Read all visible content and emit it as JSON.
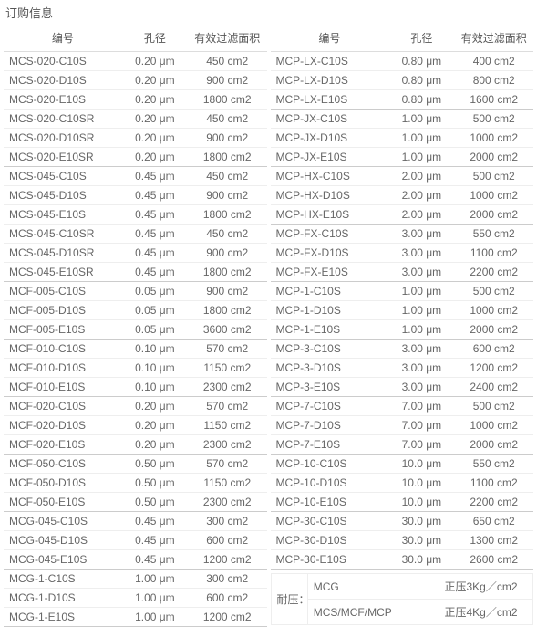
{
  "page": {
    "title": "订购信息"
  },
  "headers": {
    "code": "编号",
    "pore": "孔径",
    "area": "有效过滤面积",
    "area_short": "有效过滤面积"
  },
  "left_groups": [
    [
      {
        "code": "MCS-020-C10S",
        "pore": "0.20 μm",
        "area": "450 cm2"
      },
      {
        "code": "MCS-020-D10S",
        "pore": "0.20 μm",
        "area": "900 cm2"
      },
      {
        "code": "MCS-020-E10S",
        "pore": "0.20 μm",
        "area": "1800 cm2"
      },
      {
        "code": "MCS-020-C10SR",
        "pore": "0.20 μm",
        "area": "450 cm2"
      },
      {
        "code": "MCS-020-D10SR",
        "pore": "0.20 μm",
        "area": "900 cm2"
      },
      {
        "code": "MCS-020-E10SR",
        "pore": "0.20 μm",
        "area": "1800 cm2"
      }
    ],
    [
      {
        "code": "MCS-045-C10S",
        "pore": "0.45 μm",
        "area": "450 cm2"
      },
      {
        "code": "MCS-045-D10S",
        "pore": "0.45 μm",
        "area": "900 cm2"
      },
      {
        "code": "MCS-045-E10S",
        "pore": "0.45 μm",
        "area": "1800 cm2"
      },
      {
        "code": "MCS-045-C10SR",
        "pore": "0.45 μm",
        "area": "450 cm2"
      },
      {
        "code": "MCS-045-D10SR",
        "pore": "0.45 μm",
        "area": "900 cm2"
      },
      {
        "code": "MCS-045-E10SR",
        "pore": "0.45 μm",
        "area": "1800 cm2"
      }
    ],
    [
      {
        "code": "MCF-005-C10S",
        "pore": "0.05 μm",
        "area": "900 cm2"
      },
      {
        "code": "MCF-005-D10S",
        "pore": "0.05 μm",
        "area": "1800 cm2"
      },
      {
        "code": "MCF-005-E10S",
        "pore": "0.05 μm",
        "area": "3600 cm2"
      }
    ],
    [
      {
        "code": "MCF-010-C10S",
        "pore": "0.10 μm",
        "area": "570 cm2"
      },
      {
        "code": "MCF-010-D10S",
        "pore": "0.10 μm",
        "area": "1150 cm2"
      },
      {
        "code": "MCF-010-E10S",
        "pore": "0.10 μm",
        "area": "2300 cm2"
      }
    ],
    [
      {
        "code": "MCF-020-C10S",
        "pore": "0.20 μm",
        "area": "570 cm2"
      },
      {
        "code": "MCF-020-D10S",
        "pore": "0.20 μm",
        "area": "1150 cm2"
      },
      {
        "code": "MCF-020-E10S",
        "pore": "0.20 μm",
        "area": "2300 cm2"
      }
    ],
    [
      {
        "code": "MCF-050-C10S",
        "pore": "0.50 μm",
        "area": "570 cm2"
      },
      {
        "code": "MCF-050-D10S",
        "pore": "0.50 μm",
        "area": "1150 cm2"
      },
      {
        "code": "MCF-050-E10S",
        "pore": "0.50 μm",
        "area": "2300 cm2"
      }
    ],
    [
      {
        "code": "MCG-045-C10S",
        "pore": "0.45 μm",
        "area": "300 cm2"
      },
      {
        "code": "MCG-045-D10S",
        "pore": "0.45 μm",
        "area": "600 cm2"
      },
      {
        "code": "MCG-045-E10S",
        "pore": "0.45 μm",
        "area": "1200 cm2"
      }
    ],
    [
      {
        "code": "MCG-1-C10S",
        "pore": "1.00 μm",
        "area": "300 cm2"
      },
      {
        "code": "MCG-1-D10S",
        "pore": "1.00 μm",
        "area": "600 cm2"
      },
      {
        "code": "MCG-1-E10S",
        "pore": "1.00 μm",
        "area": "1200 cm2"
      }
    ]
  ],
  "right_groups": [
    [
      {
        "code": "MCP-LX-C10S",
        "pore": "0.80 μm",
        "area": "400 cm2"
      },
      {
        "code": "MCP-LX-D10S",
        "pore": "0.80 μm",
        "area": "800 cm2"
      },
      {
        "code": "MCP-LX-E10S",
        "pore": "0.80 μm",
        "area": "1600 cm2"
      }
    ],
    [
      {
        "code": "MCP-JX-C10S",
        "pore": "1.00 μm",
        "area": "500 cm2"
      },
      {
        "code": "MCP-JX-D10S",
        "pore": "1.00 μm",
        "area": "1000 cm2"
      },
      {
        "code": "MCP-JX-E10S",
        "pore": "1.00 μm",
        "area": "2000 cm2"
      }
    ],
    [
      {
        "code": "MCP-HX-C10S",
        "pore": "2.00 μm",
        "area": "500 cm2"
      },
      {
        "code": "MCP-HX-D10S",
        "pore": "2.00 μm",
        "area": "1000 cm2"
      },
      {
        "code": "MCP-HX-E10S",
        "pore": "2.00 μm",
        "area": "2000 cm2"
      }
    ],
    [
      {
        "code": "MCP-FX-C10S",
        "pore": "3.00 μm",
        "area": "550 cm2"
      },
      {
        "code": "MCP-FX-D10S",
        "pore": "3.00 μm",
        "area": "1100 cm2"
      },
      {
        "code": "MCP-FX-E10S",
        "pore": "3.00 μm",
        "area": "2200 cm2"
      }
    ],
    [
      {
        "code": "MCP-1-C10S",
        "pore": "1.00 μm",
        "area": "500 cm2"
      },
      {
        "code": "MCP-1-D10S",
        "pore": "1.00 μm",
        "area": "1000 cm2"
      },
      {
        "code": "MCP-1-E10S",
        "pore": "1.00 μm",
        "area": "2000 cm2"
      }
    ],
    [
      {
        "code": "MCP-3-C10S",
        "pore": "3.00 μm",
        "area": "600 cm2"
      },
      {
        "code": "MCP-3-D10S",
        "pore": "3.00 μm",
        "area": "1200 cm2"
      },
      {
        "code": "MCP-3-E10S",
        "pore": "3.00 μm",
        "area": "2400 cm2"
      }
    ],
    [
      {
        "code": "MCP-7-C10S",
        "pore": "7.00 μm",
        "area": "500 cm2"
      },
      {
        "code": "MCP-7-D10S",
        "pore": "7.00 μm",
        "area": "1000 cm2"
      },
      {
        "code": "MCP-7-E10S",
        "pore": "7.00 μm",
        "area": "2000 cm2"
      }
    ],
    [
      {
        "code": "MCP-10-C10S",
        "pore": "10.0 μm",
        "area": "550 cm2"
      },
      {
        "code": "MCP-10-D10S",
        "pore": "10.0 μm",
        "area": "1100 cm2"
      },
      {
        "code": "MCP-10-E10S",
        "pore": "10.0 μm",
        "area": "2200 cm2"
      }
    ],
    [
      {
        "code": "MCP-30-C10S",
        "pore": "30.0 μm",
        "area": "650 cm2"
      },
      {
        "code": "MCP-30-D10S",
        "pore": "30.0 μm",
        "area": "1300 cm2"
      },
      {
        "code": "MCP-30-E10S",
        "pore": "30.0 μm",
        "area": "2600 cm2"
      }
    ]
  ],
  "pressure": {
    "label": "耐压：",
    "rows": [
      {
        "type": "MCG",
        "value": "正压3Kg／cm2"
      },
      {
        "type": "MCS/MCF/MCP",
        "value": "正压4Kg／cm2"
      }
    ]
  },
  "col_widths": {
    "c1": "45%",
    "c2": "25%",
    "c3": "30%"
  }
}
